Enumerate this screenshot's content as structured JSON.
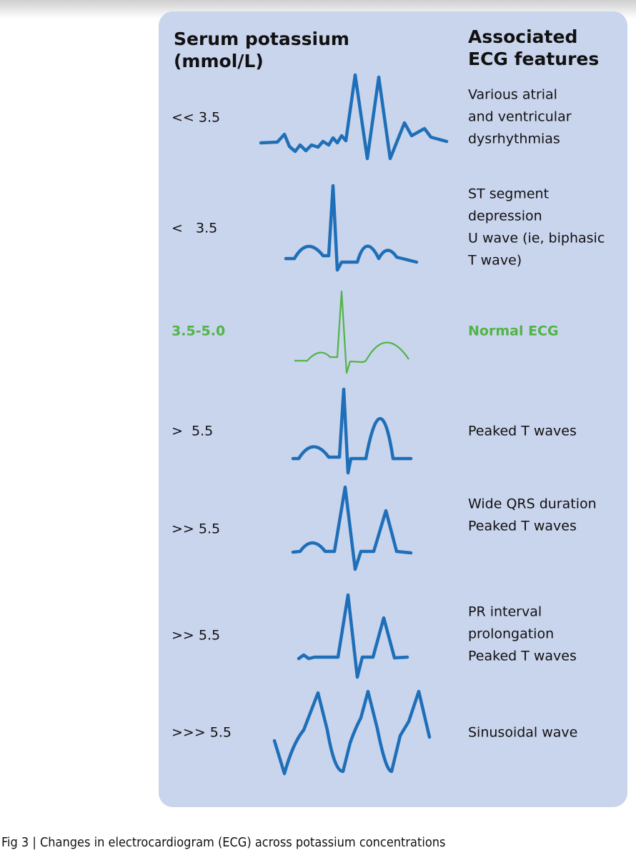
{
  "header": {
    "left_title": [
      "Serum potassium",
      "(mmol/L)"
    ],
    "right_title": [
      "Associated",
      "ECG features"
    ]
  },
  "rows": [
    {
      "potassium": "<< 3.5",
      "features": [
        "Various atrial",
        "and ventricular",
        "dysrhythmias"
      ]
    },
    {
      "potassium": "<   3.5",
      "features": [
        "ST segment",
        "depression",
        "U wave (ie, biphasic",
        "T wave)"
      ]
    },
    {
      "potassium": "3.5-5.0",
      "features": [
        "Normal ECG"
      ]
    },
    {
      "potassium": ">  5.5",
      "features": [
        "Peaked T waves"
      ]
    },
    {
      "potassium": ">> 5.5",
      "features": [
        "Wide QRS duration",
        "Peaked T waves"
      ]
    },
    {
      "potassium": ">> 5.5",
      "features": [
        "PR interval",
        "prolongation",
        "Peaked T waves"
      ]
    },
    {
      "potassium": ">>> 5.5",
      "features": [
        "Sinusoidal wave"
      ]
    }
  ],
  "caption": "Fig 3 | Changes in electrocardiogram (ECG) across potassium concentrations"
}
